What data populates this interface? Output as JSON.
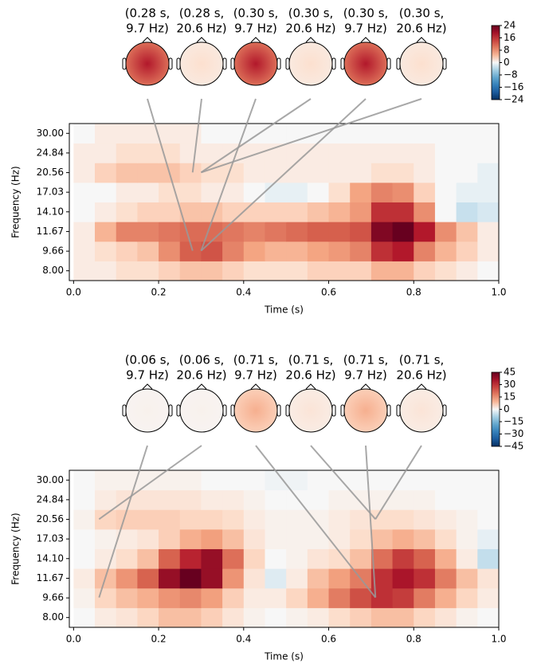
{
  "chart_data": [
    {
      "type": "heatmap",
      "xlabel": "Time (s)",
      "ylabel": "Frequency (Hz)",
      "x": [
        0,
        0.05,
        0.1,
        0.15,
        0.2,
        0.25,
        0.3,
        0.35,
        0.4,
        0.45,
        0.5,
        0.55,
        0.6,
        0.65,
        0.7,
        0.75,
        0.8,
        0.85,
        0.9,
        0.95,
        1.0
      ],
      "y": [
        8.0,
        9.66,
        11.67,
        14.1,
        17.03,
        20.56,
        24.84,
        30.0
      ],
      "xlim": [
        -0.01,
        1.0
      ],
      "ylim": [
        7.28,
        32.96
      ],
      "log_y": true,
      "xticks": [
        {
          "value": 0,
          "label": "0.0"
        },
        0.2,
        0.4,
        0.6,
        0.8,
        {
          "value": 1,
          "label": "1.0"
        }
      ],
      "yticks": [
        {
          "value": 8.0,
          "label": "8.00"
        },
        {
          "value": 9.66,
          "label": "9.66"
        },
        {
          "value": 11.67,
          "label": "11.67"
        },
        {
          "value": 14.1,
          "label": "14.10"
        },
        {
          "value": 17.03,
          "label": "17.03"
        },
        {
          "value": 20.56,
          "label": "20.56"
        },
        {
          "value": 24.84,
          "label": "24.84"
        },
        {
          "value": 30.0,
          "label": "30.00"
        }
      ],
      "z": [
        [
          1,
          1,
          2,
          2,
          3,
          4,
          4,
          3,
          2,
          2,
          2,
          3,
          3,
          3,
          5,
          5,
          3,
          2,
          1,
          0
        ],
        [
          1,
          2,
          3,
          4,
          8,
          12,
          13,
          9,
          6,
          5,
          5,
          6,
          7,
          9,
          16,
          18,
          9,
          5,
          3,
          1
        ],
        [
          1,
          5,
          9,
          9,
          10,
          11,
          11,
          10,
          9,
          10,
          11,
          12,
          12,
          13,
          22,
          24,
          18,
          8,
          4,
          1
        ],
        [
          0,
          1,
          2,
          3,
          3,
          4,
          4,
          3,
          3,
          3,
          3,
          4,
          5,
          7,
          16,
          16,
          8,
          0,
          -3,
          -2
        ],
        [
          0,
          0,
          1,
          1,
          2,
          2,
          1,
          1,
          0,
          -1,
          -1,
          0,
          2,
          6,
          9,
          8,
          3,
          0,
          -1,
          -1
        ],
        [
          1,
          3,
          4,
          4,
          4,
          3,
          2,
          2,
          1,
          1,
          1,
          1,
          1,
          1,
          2,
          2,
          1,
          0,
          0,
          -1
        ],
        [
          1,
          1,
          2,
          2,
          2,
          1,
          1,
          1,
          1,
          1,
          1,
          1,
          1,
          1,
          1,
          1,
          1,
          0,
          0,
          0
        ],
        [
          0,
          1,
          1,
          1,
          1,
          1,
          0,
          0,
          0,
          0,
          0,
          0,
          0,
          0,
          0,
          0,
          0,
          0,
          0,
          0
        ]
      ],
      "clim": [
        -24,
        24
      ],
      "cticks": [
        24,
        16,
        8,
        0,
        {
          "value": -8,
          "label": "−8"
        },
        {
          "value": -16,
          "label": "−16"
        },
        {
          "value": -24,
          "label": "−24"
        }
      ],
      "topomaps": [
        {
          "label": [
            "(0.28 s,",
            "9.7 Hz)"
          ],
          "time": 0.28,
          "freq": 9.7,
          "value": 18
        },
        {
          "label": [
            "(0.28 s,",
            "20.6 Hz)"
          ],
          "time": 0.28,
          "freq": 20.6,
          "value": 2
        },
        {
          "label": [
            "(0.30 s,",
            "9.7 Hz)"
          ],
          "time": 0.3,
          "freq": 9.7,
          "value": 18
        },
        {
          "label": [
            "(0.30 s,",
            "20.6 Hz)"
          ],
          "time": 0.3,
          "freq": 20.6,
          "value": 2
        },
        {
          "label": [
            "(0.30 s,",
            "9.7 Hz)"
          ],
          "time": 0.3,
          "freq": 9.7,
          "value": 18
        },
        {
          "label": [
            "(0.30 s,",
            "20.6 Hz)"
          ],
          "time": 0.3,
          "freq": 20.6,
          "value": 2
        }
      ]
    },
    {
      "type": "heatmap",
      "xlabel": "Time (s)",
      "ylabel": "Frequency (Hz)",
      "x": [
        0,
        0.05,
        0.1,
        0.15,
        0.2,
        0.25,
        0.3,
        0.35,
        0.4,
        0.45,
        0.5,
        0.55,
        0.6,
        0.65,
        0.7,
        0.75,
        0.8,
        0.85,
        0.9,
        0.95,
        1.0
      ],
      "y": [
        8.0,
        9.66,
        11.67,
        14.1,
        17.03,
        20.56,
        24.84,
        30.0
      ],
      "xlim": [
        -0.01,
        1.0
      ],
      "ylim": [
        7.28,
        32.96
      ],
      "log_y": true,
      "xticks": [
        {
          "value": 0,
          "label": "0.0"
        },
        0.2,
        0.4,
        0.6,
        0.8,
        {
          "value": 1,
          "label": "1.0"
        }
      ],
      "yticks": [
        {
          "value": 8.0,
          "label": "8.00"
        },
        {
          "value": 9.66,
          "label": "9.66"
        },
        {
          "value": 11.67,
          "label": "11.67"
        },
        {
          "value": 14.1,
          "label": "14.10"
        },
        {
          "value": 17.03,
          "label": "17.03"
        },
        {
          "value": 20.56,
          "label": "20.56"
        },
        {
          "value": 24.84,
          "label": "24.84"
        },
        {
          "value": 30.0,
          "label": "30.00"
        }
      ],
      "z": [
        [
          0,
          2,
          3,
          5,
          8,
          8,
          6,
          3,
          1,
          0,
          1,
          2,
          4,
          6,
          8,
          8,
          5,
          3,
          1,
          0
        ],
        [
          1,
          5,
          8,
          10,
          14,
          16,
          12,
          6,
          2,
          2,
          5,
          10,
          18,
          25,
          30,
          28,
          18,
          10,
          5,
          2
        ],
        [
          2,
          8,
          14,
          22,
          38,
          45,
          38,
          14,
          3,
          -3,
          2,
          8,
          12,
          18,
          30,
          35,
          30,
          18,
          8,
          3
        ],
        [
          0,
          2,
          4,
          8,
          22,
          32,
          38,
          20,
          5,
          0,
          1,
          3,
          4,
          8,
          20,
          28,
          22,
          10,
          2,
          -6
        ],
        [
          0,
          1,
          2,
          3,
          6,
          10,
          12,
          8,
          3,
          1,
          1,
          1,
          2,
          4,
          8,
          10,
          8,
          4,
          1,
          -2
        ],
        [
          1,
          5,
          6,
          6,
          6,
          5,
          5,
          4,
          2,
          1,
          1,
          1,
          2,
          3,
          4,
          4,
          3,
          2,
          1,
          0
        ],
        [
          0,
          2,
          3,
          3,
          3,
          3,
          2,
          2,
          1,
          0,
          0,
          0,
          1,
          1,
          1,
          1,
          1,
          0,
          0,
          0
        ],
        [
          0,
          1,
          1,
          1,
          1,
          1,
          0,
          0,
          0,
          -1,
          -1,
          0,
          0,
          0,
          0,
          0,
          0,
          0,
          0,
          0
        ]
      ],
      "clim": [
        -45,
        45
      ],
      "cticks": [
        45,
        30,
        15,
        0,
        {
          "value": -15,
          "label": "−15"
        },
        {
          "value": -30,
          "label": "−30"
        },
        {
          "value": -45,
          "label": "−45"
        }
      ],
      "topomaps": [
        {
          "label": [
            "(0.06 s,",
            "9.7 Hz)"
          ],
          "time": 0.06,
          "freq": 9.7,
          "value": 1
        },
        {
          "label": [
            "(0.06 s,",
            "20.6 Hz)"
          ],
          "time": 0.06,
          "freq": 20.6,
          "value": 1
        },
        {
          "label": [
            "(0.71 s,",
            "9.7 Hz)"
          ],
          "time": 0.71,
          "freq": 9.7,
          "value": 10
        },
        {
          "label": [
            "(0.71 s,",
            "20.6 Hz)"
          ],
          "time": 0.71,
          "freq": 20.6,
          "value": 3
        },
        {
          "label": [
            "(0.71 s,",
            "9.7 Hz)"
          ],
          "time": 0.71,
          "freq": 9.7,
          "value": 10
        },
        {
          "label": [
            "(0.71 s,",
            "20.6 Hz)"
          ],
          "time": 0.71,
          "freq": 20.6,
          "value": 3
        }
      ]
    }
  ]
}
